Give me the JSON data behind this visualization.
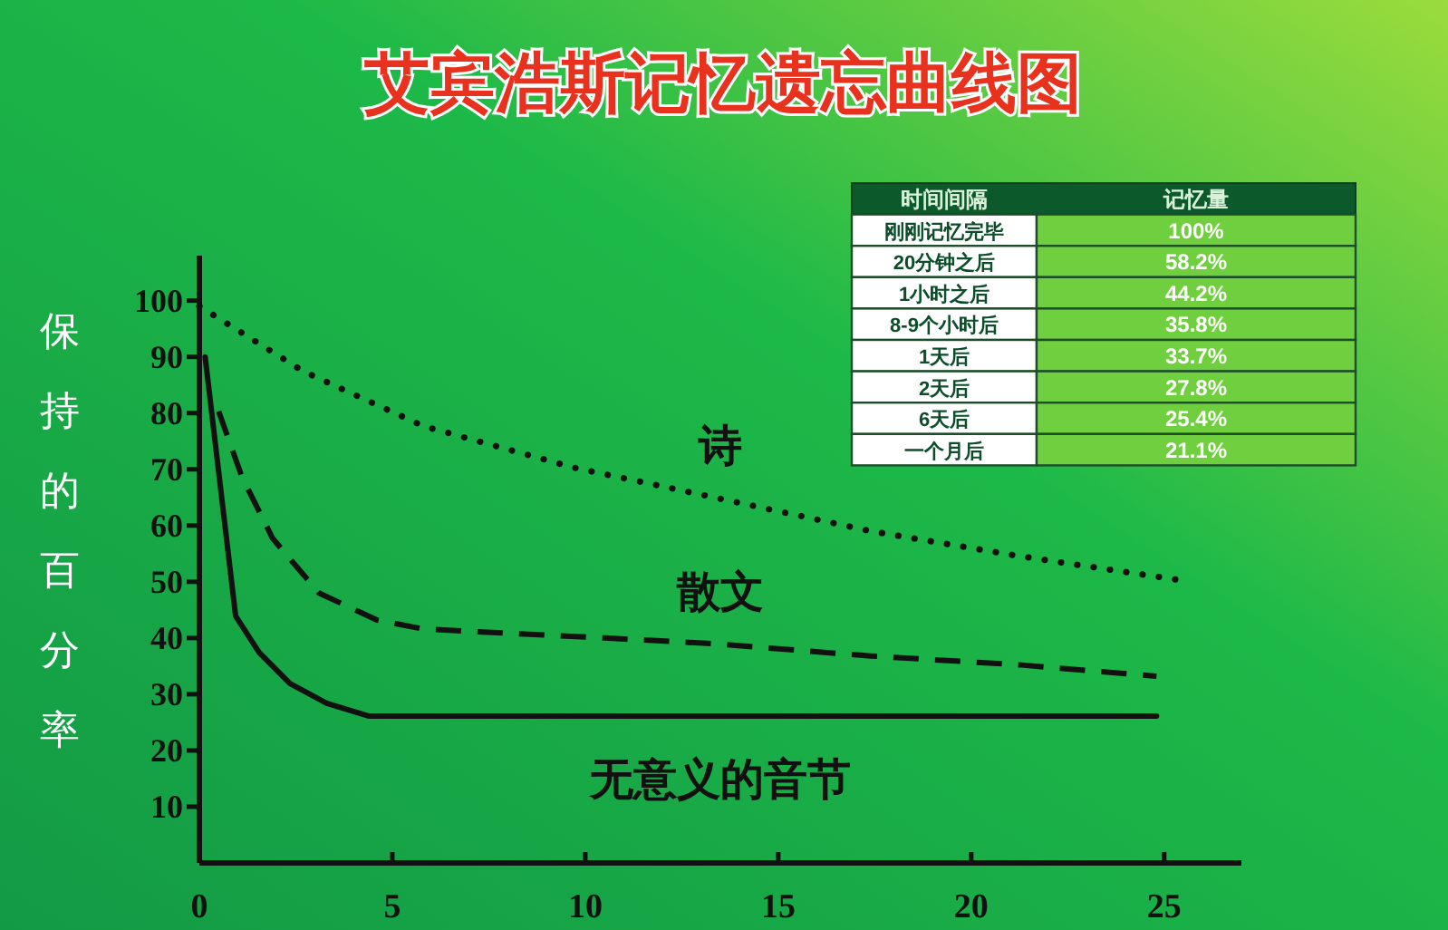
{
  "chart_data": [
    {
      "type": "line",
      "title": "艾宾浩斯记忆遗忘曲线图",
      "ylabel": "保持的百分率",
      "xlim": [
        0,
        27
      ],
      "ylim": [
        0,
        108
      ],
      "xticks": [
        0,
        5,
        10,
        15,
        20,
        25
      ],
      "yticks": [
        10,
        20,
        30,
        40,
        50,
        60,
        70,
        80,
        90,
        100
      ],
      "grid": false,
      "legend": false,
      "marker": "none",
      "series": [
        {
          "name": "诗",
          "color": "#111111",
          "line_style": "dotted",
          "x": [
            0,
            2.7,
            5.8,
            9.7,
            13,
            17.4,
            21.3,
            25.4
          ],
          "values": [
            99,
            87.4,
            77.7,
            70.3,
            65.5,
            59,
            54.5,
            50.3
          ]
        },
        {
          "name": "散文",
          "color": "#111111",
          "line_style": "dashed",
          "x": [
            0.5,
            1.1,
            1.9,
            3.1,
            4.6,
            5.8,
            10.5,
            13.3,
            17.4,
            21.3,
            24.8
          ],
          "values": [
            80.3,
            68.7,
            57.7,
            48,
            43.2,
            41.6,
            40,
            39,
            36.8,
            35.2,
            33.2
          ]
        },
        {
          "name": "无意义的音节",
          "color": "#111111",
          "line_style": "solid",
          "x": [
            0.15,
            0.94,
            1.55,
            2.35,
            3.3,
            4.4,
            24.8
          ],
          "values": [
            90,
            43.9,
            37.4,
            31.9,
            28.4,
            26.1,
            26.1
          ]
        }
      ]
    },
    {
      "type": "other",
      "annotations": [
        "时间间隔",
        "记忆量"
      ],
      "categories": [
        "刚刚记忆完毕",
        "20分钟之后",
        "1小时之后",
        "8-9个小时后",
        "1天后",
        "2天后",
        "6天后",
        "一个月后"
      ],
      "value_labels": [
        "100%",
        "58.2%",
        "44.2%",
        "35.8%",
        "33.7%",
        "27.8%",
        "25.4%",
        "21.1%"
      ]
    }
  ]
}
